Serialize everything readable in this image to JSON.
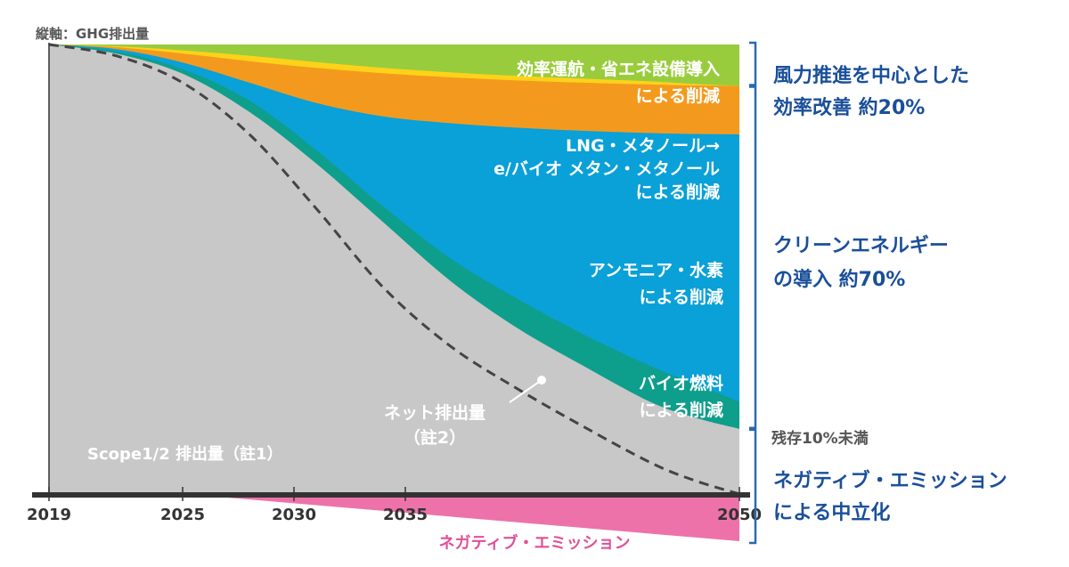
{
  "chart_data": {
    "type": "area",
    "axis_caption": "縦軸：GHG排出量",
    "x_ticks": [
      "2019",
      "2025",
      "2030",
      "2035",
      "2050"
    ],
    "x_tick_values": [
      2019,
      2025,
      2030,
      2035,
      2050
    ],
    "xlim": [
      2019,
      2050
    ],
    "ylim": [
      -11,
      100
    ],
    "series": [
      {
        "key": "scope",
        "label": "Scope1/2 排出量（註1）",
        "color": "#c8c8c8",
        "x": [
          2019,
          2022,
          2025,
          2028,
          2031,
          2034,
          2037,
          2040,
          2043,
          2046,
          2048,
          2050
        ],
        "upper": [
          100,
          98,
          93.5,
          85,
          73.5,
          60.5,
          47.5,
          37,
          28.5,
          20.5,
          17,
          14.5
        ]
      },
      {
        "key": "bio",
        "label_lines": [
          "バイオ燃料",
          "による削減"
        ],
        "color": "#0e9e8c",
        "x": [
          2019,
          2022,
          2025,
          2028,
          2031,
          2034,
          2037,
          2040,
          2043,
          2046,
          2048,
          2050
        ],
        "upper": [
          100,
          98.5,
          94.5,
          87.5,
          76.5,
          64,
          52.5,
          43.5,
          35.5,
          28.5,
          24.5,
          20.5
        ]
      },
      {
        "key": "ammonia",
        "label_lines": [
          "アンモニア・水素",
          "による削減"
        ],
        "color": "#0aa0d8",
        "x": [
          2019,
          2022,
          2025,
          2028,
          2031,
          2034,
          2037,
          2040,
          2043,
          2046,
          2048,
          2050
        ],
        "upper": [
          100,
          99,
          96,
          91.5,
          87,
          84,
          82.5,
          81.5,
          80.8,
          80.3,
          80.1,
          80
        ]
      },
      {
        "key": "lng",
        "label_lines": [
          "LNG・メタノール→",
          "e/バイオ メタン・メタノール",
          "による削減"
        ],
        "color": "#f39a1e",
        "x": [
          2019,
          2022,
          2025,
          2028,
          2031,
          2034,
          2037,
          2040,
          2043,
          2046,
          2048,
          2050
        ],
        "upper": [
          100,
          99.4,
          98,
          96.3,
          94.8,
          93.6,
          92.7,
          92,
          91.5,
          91.1,
          90.9,
          90.8
        ]
      },
      {
        "key": "yellow",
        "label": "",
        "color": "#ffd21a",
        "x": [
          2019,
          2022,
          2025,
          2028,
          2031,
          2034,
          2037,
          2040,
          2043,
          2046,
          2048,
          2050
        ],
        "upper": [
          100,
          99.6,
          98.7,
          97.5,
          96.1,
          94.8,
          93.8,
          93,
          92.4,
          91.8,
          91.2,
          90.8
        ]
      },
      {
        "key": "efficiency",
        "label_lines": [
          "効率運航・省エネ設備導入",
          "による削減"
        ],
        "color": "#99cc3c",
        "x": [
          2019,
          2050
        ],
        "upper": [
          100,
          100
        ]
      }
    ],
    "net_emission": {
      "label_lines": [
        "ネット排出量",
        "（註2）"
      ],
      "x": [
        2019,
        2022,
        2025,
        2028,
        2031,
        2034,
        2037,
        2040,
        2043,
        2046,
        2048,
        2050
      ],
      "y": [
        100,
        97.5,
        91.5,
        80,
        63.5,
        46,
        33,
        23.5,
        15,
        7,
        3,
        0
      ]
    },
    "negative_emission": {
      "label": "ネガティブ・エミッション",
      "color": "#ee72aa",
      "x": [
        2027,
        2050
      ],
      "y": [
        0,
        -10.5
      ]
    },
    "right_brackets": [
      {
        "lines": [
          "風力推進を中心とした",
          "効率改善 約20%"
        ],
        "range": [
          100,
          80
        ],
        "range_upper": [
          100,
          90.8
        ]
      },
      {
        "lines": [
          "クリーンエネルギー",
          "の導入 約70%"
        ],
        "range": [
          90.8,
          14.5
        ]
      },
      {
        "lines": [
          "ネガティブ・エミッション",
          "による中立化"
        ],
        "range": [
          14.5,
          -10.5
        ]
      }
    ],
    "residual_note": "残存10%未満",
    "text_color": "#1a4f9a"
  }
}
